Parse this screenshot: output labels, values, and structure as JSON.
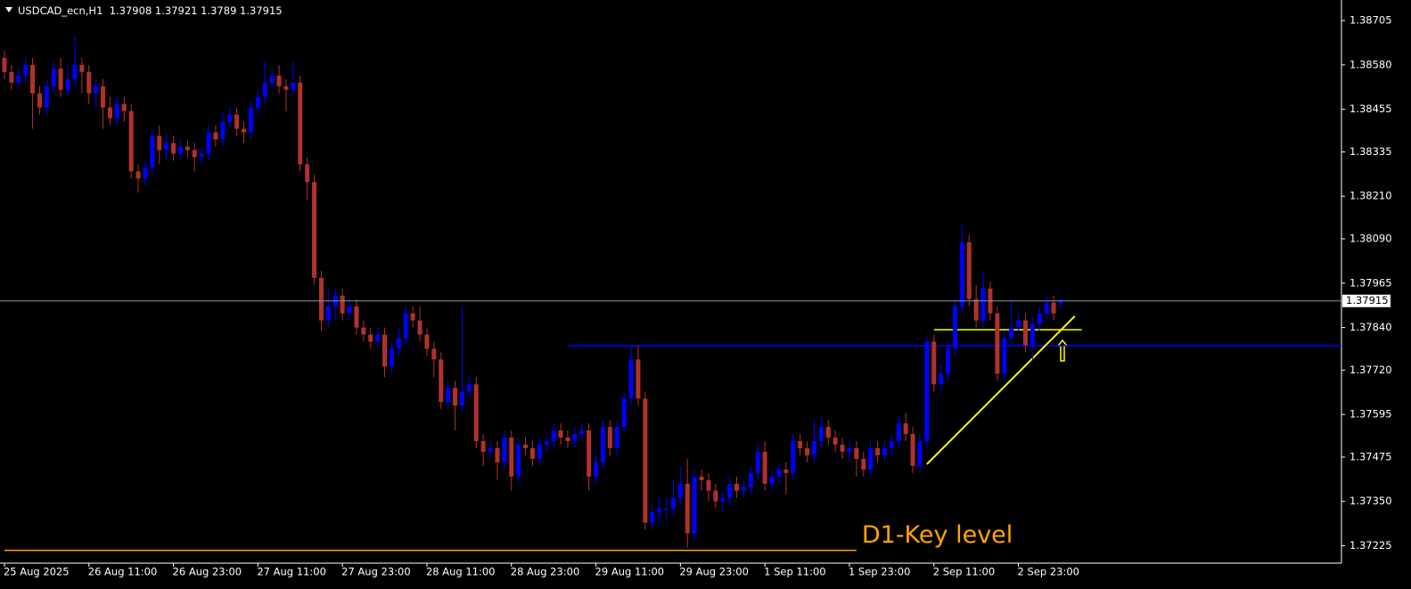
{
  "chart_data": {
    "type": "candlestick",
    "symbol": "USDCAD_ecn,H1",
    "colors": {
      "background": "#000000",
      "up": "#0000ff",
      "down": "#b0322c",
      "text": "#ffffff",
      "axis": "#ffffff"
    },
    "grid": false,
    "ylim": [
      1.37176,
      1.38763
    ],
    "yticks": [
      {
        "value": 1.38705,
        "label": "1.38705"
      },
      {
        "value": 1.3858,
        "label": "1.38580"
      },
      {
        "value": 1.38455,
        "label": "1.38455"
      },
      {
        "value": 1.38335,
        "label": "1.38335"
      },
      {
        "value": 1.3821,
        "label": "1.38210"
      },
      {
        "value": 1.3809,
        "label": "1.38090"
      },
      {
        "value": 1.37965,
        "label": "1.37965"
      },
      {
        "value": 1.3784,
        "label": "1.37840"
      },
      {
        "value": 1.3772,
        "label": "1.37720"
      },
      {
        "value": 1.37595,
        "label": "1.37595"
      },
      {
        "value": 1.37475,
        "label": "1.37475"
      },
      {
        "value": 1.3735,
        "label": "1.37350"
      },
      {
        "value": 1.37225,
        "label": "1.37225"
      }
    ],
    "x": [
      "25 Aug 2025",
      null,
      null,
      null,
      null,
      null,
      null,
      null,
      null,
      null,
      null,
      null,
      "26 Aug 11:00",
      null,
      null,
      null,
      null,
      null,
      null,
      null,
      null,
      null,
      null,
      null,
      "26 Aug 23:00",
      null,
      null,
      null,
      null,
      null,
      null,
      null,
      null,
      null,
      null,
      null,
      "27 Aug 11:00",
      null,
      null,
      null,
      null,
      null,
      null,
      null,
      null,
      null,
      null,
      null,
      "27 Aug 23:00",
      null,
      null,
      null,
      null,
      null,
      null,
      null,
      null,
      null,
      null,
      null,
      "28 Aug 11:00",
      null,
      null,
      null,
      null,
      null,
      null,
      null,
      null,
      null,
      null,
      null,
      "28 Aug 23:00",
      null,
      null,
      null,
      null,
      null,
      null,
      null,
      null,
      null,
      null,
      null,
      "29 Aug 11:00",
      null,
      null,
      null,
      null,
      null,
      null,
      null,
      null,
      null,
      null,
      null,
      "29 Aug 23:00",
      null,
      null,
      null,
      null,
      null,
      null,
      null,
      null,
      null,
      null,
      null,
      "1 Sep 11:00",
      null,
      null,
      null,
      null,
      null,
      null,
      null,
      null,
      null,
      null,
      null,
      "1 Sep 23:00",
      null,
      null,
      null,
      null,
      null,
      null,
      null,
      null,
      null,
      null,
      null,
      "2 Sep 11:00",
      null,
      null,
      null,
      null,
      null,
      null,
      null,
      null,
      null,
      null,
      null,
      "2 Sep 23:00",
      null,
      null,
      null,
      null,
      null,
      null
    ],
    "ohlc": [
      [
        1.386,
        1.3862,
        1.3854,
        1.3856
      ],
      [
        1.3856,
        1.3858,
        1.3851,
        1.3853
      ],
      [
        1.3853,
        1.3857,
        1.3851,
        1.3855
      ],
      [
        1.3855,
        1.386,
        1.3853,
        1.3858
      ],
      [
        1.3858,
        1.386,
        1.384,
        1.385
      ],
      [
        1.385,
        1.3852,
        1.3844,
        1.3846
      ],
      [
        1.3846,
        1.3854,
        1.3844,
        1.3852
      ],
      [
        1.3852,
        1.3859,
        1.385,
        1.3857
      ],
      [
        1.3857,
        1.386,
        1.3849,
        1.3851
      ],
      [
        1.3851,
        1.3858,
        1.3849,
        1.3854
      ],
      [
        1.3854,
        1.3866,
        1.3852,
        1.3858
      ],
      [
        1.3858,
        1.386,
        1.385,
        1.3856
      ],
      [
        1.3856,
        1.3858,
        1.3847,
        1.385
      ],
      [
        1.385,
        1.3854,
        1.3846,
        1.3852
      ],
      [
        1.3852,
        1.3854,
        1.384,
        1.3846
      ],
      [
        1.3846,
        1.3849,
        1.3841,
        1.3843
      ],
      [
        1.3843,
        1.3849,
        1.3841,
        1.3847
      ],
      [
        1.3847,
        1.3849,
        1.3842,
        1.3845
      ],
      [
        1.3845,
        1.3847,
        1.3826,
        1.3828
      ],
      [
        1.3828,
        1.383,
        1.3822,
        1.3826
      ],
      [
        1.3826,
        1.3831,
        1.3824,
        1.3829
      ],
      [
        1.3829,
        1.384,
        1.3827,
        1.3838
      ],
      [
        1.3838,
        1.3841,
        1.383,
        1.3834
      ],
      [
        1.3834,
        1.3839,
        1.3831,
        1.3836
      ],
      [
        1.3836,
        1.3838,
        1.3831,
        1.3833
      ],
      [
        1.3833,
        1.3837,
        1.3831,
        1.3835
      ],
      [
        1.3835,
        1.3837,
        1.3832,
        1.3834
      ],
      [
        1.3834,
        1.3836,
        1.3828,
        1.3832
      ],
      [
        1.3832,
        1.3835,
        1.383,
        1.3833
      ],
      [
        1.3833,
        1.3841,
        1.3831,
        1.3839
      ],
      [
        1.3839,
        1.3841,
        1.3835,
        1.3837
      ],
      [
        1.3837,
        1.3845,
        1.3835,
        1.3842
      ],
      [
        1.3842,
        1.3846,
        1.384,
        1.3844
      ],
      [
        1.3844,
        1.3846,
        1.3838,
        1.384
      ],
      [
        1.384,
        1.3842,
        1.3836,
        1.3839
      ],
      [
        1.3839,
        1.3848,
        1.3837,
        1.3846
      ],
      [
        1.3846,
        1.3851,
        1.3844,
        1.3849
      ],
      [
        1.3849,
        1.3859,
        1.3847,
        1.3853
      ],
      [
        1.3853,
        1.3857,
        1.3851,
        1.3855
      ],
      [
        1.3855,
        1.3858,
        1.385,
        1.3852
      ],
      [
        1.3852,
        1.3854,
        1.3845,
        1.3851
      ],
      [
        1.3851,
        1.3859,
        1.3849,
        1.3853
      ],
      [
        1.3853,
        1.3855,
        1.3828,
        1.383
      ],
      [
        1.383,
        1.3832,
        1.382,
        1.3825
      ],
      [
        1.3825,
        1.3827,
        1.3796,
        1.3798
      ],
      [
        1.3798,
        1.38,
        1.3783,
        1.3786
      ],
      [
        1.3786,
        1.3795,
        1.3784,
        1.379
      ],
      [
        1.379,
        1.3795,
        1.3786,
        1.3793
      ],
      [
        1.3793,
        1.3795,
        1.3786,
        1.3788
      ],
      [
        1.3788,
        1.3792,
        1.3786,
        1.379
      ],
      [
        1.379,
        1.3792,
        1.3782,
        1.3784
      ],
      [
        1.3784,
        1.3786,
        1.378,
        1.3782
      ],
      [
        1.3782,
        1.3784,
        1.3778,
        1.378
      ],
      [
        1.378,
        1.3784,
        1.3778,
        1.3782
      ],
      [
        1.3782,
        1.3784,
        1.377,
        1.3773
      ],
      [
        1.3773,
        1.378,
        1.3771,
        1.3778
      ],
      [
        1.3778,
        1.3784,
        1.3776,
        1.3781
      ],
      [
        1.3781,
        1.379,
        1.3779,
        1.3788
      ],
      [
        1.3788,
        1.379,
        1.3784,
        1.3786
      ],
      [
        1.3786,
        1.379,
        1.378,
        1.3782
      ],
      [
        1.3782,
        1.3784,
        1.3776,
        1.3778
      ],
      [
        1.3778,
        1.378,
        1.377,
        1.3775
      ],
      [
        1.3775,
        1.3777,
        1.3761,
        1.3763
      ],
      [
        1.3763,
        1.3769,
        1.3761,
        1.3767
      ],
      [
        1.3767,
        1.3769,
        1.3755,
        1.3762
      ],
      [
        1.3762,
        1.379,
        1.376,
        1.3766
      ],
      [
        1.3766,
        1.377,
        1.3764,
        1.3768
      ],
      [
        1.3768,
        1.377,
        1.375,
        1.3752
      ],
      [
        1.3752,
        1.3754,
        1.3745,
        1.3749
      ],
      [
        1.3749,
        1.3752,
        1.3747,
        1.375
      ],
      [
        1.375,
        1.3752,
        1.3741,
        1.3746
      ],
      [
        1.3746,
        1.3755,
        1.3744,
        1.3753
      ],
      [
        1.3753,
        1.3755,
        1.3738,
        1.3742
      ],
      [
        1.3742,
        1.3753,
        1.374,
        1.3751
      ],
      [
        1.3751,
        1.3753,
        1.3748,
        1.375
      ],
      [
        1.375,
        1.3752,
        1.3745,
        1.3747
      ],
      [
        1.3747,
        1.3753,
        1.3745,
        1.3751
      ],
      [
        1.3751,
        1.3754,
        1.3749,
        1.3752
      ],
      [
        1.3752,
        1.3757,
        1.375,
        1.3755
      ],
      [
        1.3755,
        1.3757,
        1.3751,
        1.3753
      ],
      [
        1.3753,
        1.3755,
        1.375,
        1.3752
      ],
      [
        1.3752,
        1.3756,
        1.375,
        1.3754
      ],
      [
        1.3754,
        1.3757,
        1.3752,
        1.3755
      ],
      [
        1.3755,
        1.3757,
        1.3738,
        1.3742
      ],
      [
        1.3742,
        1.3748,
        1.374,
        1.3746
      ],
      [
        1.3746,
        1.3758,
        1.3744,
        1.3756
      ],
      [
        1.3756,
        1.3758,
        1.3748,
        1.375
      ],
      [
        1.375,
        1.3758,
        1.3748,
        1.3756
      ],
      [
        1.3756,
        1.3766,
        1.3754,
        1.3764
      ],
      [
        1.3764,
        1.3779,
        1.3762,
        1.3775
      ],
      [
        1.3775,
        1.3779,
        1.3762,
        1.3764
      ],
      [
        1.3764,
        1.3766,
        1.3727,
        1.3729
      ],
      [
        1.3729,
        1.3734,
        1.3727,
        1.3732
      ],
      [
        1.3732,
        1.3736,
        1.3729,
        1.3733
      ],
      [
        1.3733,
        1.3736,
        1.373,
        1.3733
      ],
      [
        1.3733,
        1.3741,
        1.3731,
        1.3736
      ],
      [
        1.3736,
        1.3745,
        1.3734,
        1.374
      ],
      [
        1.374,
        1.3747,
        1.3722,
        1.3726
      ],
      [
        1.3726,
        1.3744,
        1.3724,
        1.3742
      ],
      [
        1.3742,
        1.3744,
        1.3738,
        1.3741
      ],
      [
        1.3741,
        1.3743,
        1.3735,
        1.3738
      ],
      [
        1.3738,
        1.374,
        1.3733,
        1.3735
      ],
      [
        1.3735,
        1.3738,
        1.3732,
        1.3736
      ],
      [
        1.3736,
        1.3742,
        1.3734,
        1.374
      ],
      [
        1.374,
        1.3742,
        1.3736,
        1.3738
      ],
      [
        1.3738,
        1.3741,
        1.3736,
        1.3739
      ],
      [
        1.3739,
        1.3745,
        1.3737,
        1.3743
      ],
      [
        1.3743,
        1.3751,
        1.3741,
        1.3749
      ],
      [
        1.3749,
        1.3752,
        1.3738,
        1.374
      ],
      [
        1.374,
        1.3744,
        1.3738,
        1.3742
      ],
      [
        1.3742,
        1.3746,
        1.374,
        1.3744
      ],
      [
        1.3744,
        1.3746,
        1.3737,
        1.3743
      ],
      [
        1.3743,
        1.3754,
        1.3741,
        1.3752
      ],
      [
        1.3752,
        1.3754,
        1.3748,
        1.375
      ],
      [
        1.375,
        1.3752,
        1.3746,
        1.3748
      ],
      [
        1.3748,
        1.3758,
        1.3746,
        1.3752
      ],
      [
        1.3752,
        1.3759,
        1.375,
        1.3756
      ],
      [
        1.3756,
        1.3758,
        1.3751,
        1.3753
      ],
      [
        1.3753,
        1.3755,
        1.3749,
        1.3751
      ],
      [
        1.3751,
        1.3753,
        1.3747,
        1.3749
      ],
      [
        1.3749,
        1.3752,
        1.3746,
        1.375
      ],
      [
        1.375,
        1.3752,
        1.3742,
        1.3747
      ],
      [
        1.3747,
        1.3749,
        1.3742,
        1.3744
      ],
      [
        1.3744,
        1.3752,
        1.3742,
        1.375
      ],
      [
        1.375,
        1.3752,
        1.3746,
        1.3748
      ],
      [
        1.3748,
        1.3752,
        1.3746,
        1.375
      ],
      [
        1.375,
        1.3754,
        1.3748,
        1.3752
      ],
      [
        1.3752,
        1.3759,
        1.375,
        1.3757
      ],
      [
        1.3757,
        1.376,
        1.3752,
        1.3754
      ],
      [
        1.3754,
        1.3756,
        1.3743,
        1.3745
      ],
      [
        1.3745,
        1.3754,
        1.3743,
        1.3752
      ],
      [
        1.3752,
        1.3782,
        1.375,
        1.378
      ],
      [
        1.378,
        1.3782,
        1.3766,
        1.3768
      ],
      [
        1.3768,
        1.3774,
        1.3766,
        1.3771
      ],
      [
        1.3771,
        1.378,
        1.3769,
        1.3778
      ],
      [
        1.3778,
        1.3792,
        1.3776,
        1.379
      ],
      [
        1.379,
        1.3813,
        1.3788,
        1.3808
      ],
      [
        1.3808,
        1.381,
        1.379,
        1.3792
      ],
      [
        1.3792,
        1.3796,
        1.3784,
        1.3786
      ],
      [
        1.3786,
        1.38,
        1.3784,
        1.3795
      ],
      [
        1.3795,
        1.3797,
        1.3786,
        1.3788
      ],
      [
        1.3788,
        1.379,
        1.3769,
        1.3771
      ],
      [
        1.3771,
        1.3783,
        1.3769,
        1.3781
      ],
      [
        1.3781,
        1.3792,
        1.3779,
        1.3784
      ],
      [
        1.3784,
        1.3788,
        1.3782,
        1.3786
      ],
      [
        1.3786,
        1.3788,
        1.3777,
        1.3779
      ],
      [
        1.3779,
        1.3787,
        1.3775,
        1.3785
      ],
      [
        1.3785,
        1.379,
        1.3783,
        1.3788
      ],
      [
        1.3788,
        1.3793,
        1.3786,
        1.3791
      ],
      [
        1.3791,
        1.3793,
        1.3786,
        1.3788
      ],
      [
        1.37908,
        1.37921,
        1.3789,
        1.37915
      ]
    ],
    "levels": [
      {
        "kind": "horizontal",
        "price": 1.37789,
        "start": 80,
        "color": "#0000ff"
      },
      {
        "kind": "horizontal",
        "price": 1.37212,
        "start": 0,
        "end": 121,
        "color": "#ffa500",
        "label": "D1-Key level"
      },
      {
        "kind": "horizontal",
        "price": 1.37834,
        "start": 132,
        "end": 153,
        "color": "#ffff00"
      },
      {
        "kind": "trend",
        "start": 131,
        "end": 152,
        "from": 1.37455,
        "to": 1.37872,
        "color": "#ffff00"
      }
    ]
  }
}
